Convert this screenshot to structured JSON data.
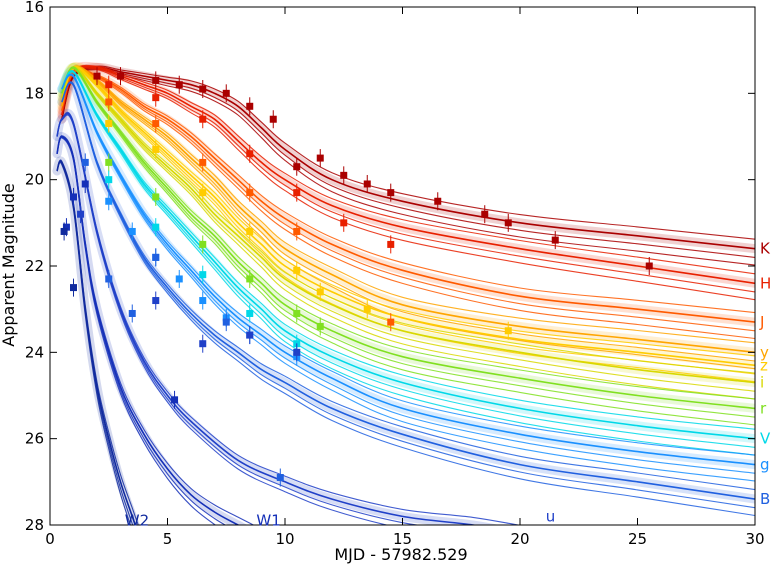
{
  "chart_data": {
    "type": "line",
    "xlabel": "MJD - 57982.529",
    "ylabel": "Apparent Magnitude",
    "xlim": [
      0,
      30
    ],
    "ylim": [
      28,
      16
    ],
    "y_inverted": true,
    "x_ticks": [
      0,
      5,
      10,
      15,
      20,
      25,
      30
    ],
    "y_ticks": [
      16,
      18,
      20,
      22,
      24,
      26,
      28
    ],
    "grid": false,
    "legend": "band labels at right edge",
    "series": [
      {
        "name": "K",
        "color": "#aa0000",
        "label_pos": "right",
        "x": [
          0.5,
          1,
          2,
          3,
          4,
          5,
          6,
          7,
          8,
          9,
          10,
          12,
          15,
          20,
          25,
          30
        ],
        "y": [
          18.6,
          17.6,
          17.4,
          17.5,
          17.6,
          17.7,
          17.8,
          18.0,
          18.3,
          18.8,
          19.3,
          20.0,
          20.5,
          21.0,
          21.3,
          21.6
        ]
      },
      {
        "name": "H",
        "color": "#e82000",
        "label_pos": "right",
        "x": [
          0.5,
          1,
          2,
          3,
          4,
          5,
          6,
          7,
          8,
          9,
          10,
          12,
          15,
          20,
          25,
          30
        ],
        "y": [
          18.5,
          17.5,
          17.4,
          17.6,
          17.8,
          18.0,
          18.3,
          18.6,
          19.1,
          19.6,
          20.0,
          20.6,
          21.1,
          21.6,
          22.0,
          22.4
        ]
      },
      {
        "name": "J",
        "color": "#ff5a00",
        "label_pos": "right",
        "x": [
          0.5,
          1,
          2,
          3,
          4,
          5,
          6,
          7,
          8,
          9,
          10,
          12,
          15,
          20,
          25,
          30
        ],
        "y": [
          18.4,
          17.5,
          17.6,
          17.9,
          18.3,
          18.6,
          19.0,
          19.5,
          20.0,
          20.5,
          20.9,
          21.5,
          22.1,
          22.7,
          23.0,
          23.3
        ]
      },
      {
        "name": "y",
        "color": "#ffa500",
        "label_pos": "right",
        "x": [
          0.5,
          1,
          2,
          3,
          4,
          5,
          6,
          7,
          8,
          9,
          10,
          12,
          15,
          20,
          25,
          30
        ],
        "y": [
          18.3,
          17.4,
          17.7,
          18.2,
          18.6,
          19.0,
          19.5,
          20.0,
          20.6,
          21.1,
          21.6,
          22.2,
          22.9,
          23.4,
          23.7,
          24.0
        ]
      },
      {
        "name": "z",
        "color": "#ffcc00",
        "label_pos": "right",
        "x": [
          0.5,
          1,
          2,
          3,
          4,
          5,
          6,
          7,
          8,
          9,
          10,
          12,
          15,
          20,
          25,
          30
        ],
        "y": [
          18.2,
          17.4,
          17.8,
          18.4,
          18.9,
          19.4,
          19.9,
          20.4,
          21.0,
          21.5,
          22.0,
          22.6,
          23.2,
          23.7,
          24.0,
          24.3
        ]
      },
      {
        "name": "i",
        "color": "#d8d800",
        "label_pos": "right",
        "x": [
          0.5,
          1,
          2,
          3,
          4,
          5,
          6,
          7,
          8,
          9,
          10,
          12,
          15,
          20,
          25,
          30
        ],
        "y": [
          18.1,
          17.4,
          18.0,
          18.6,
          19.2,
          19.7,
          20.2,
          20.8,
          21.3,
          21.8,
          22.3,
          22.9,
          23.5,
          24.0,
          24.4,
          24.7
        ]
      },
      {
        "name": "r",
        "color": "#80e020",
        "label_pos": "right",
        "x": [
          0.5,
          1,
          2,
          3,
          4,
          5,
          6,
          7,
          8,
          9,
          10,
          12,
          15,
          20,
          25,
          30
        ],
        "y": [
          18.0,
          17.4,
          18.2,
          18.9,
          19.6,
          20.2,
          20.8,
          21.3,
          21.9,
          22.4,
          22.9,
          23.5,
          24.1,
          24.6,
          25.0,
          25.3
        ]
      },
      {
        "name": "V",
        "color": "#00d8e8",
        "label_pos": "right",
        "x": [
          0.5,
          1,
          2,
          3,
          4,
          5,
          6,
          7,
          8,
          9,
          10,
          12,
          15,
          20,
          25,
          30
        ],
        "y": [
          17.9,
          17.5,
          18.5,
          19.3,
          20.1,
          20.7,
          21.3,
          21.9,
          22.5,
          23.0,
          23.5,
          24.1,
          24.7,
          25.3,
          25.7,
          26.0
        ]
      },
      {
        "name": "g",
        "color": "#1a90ff",
        "label_pos": "right",
        "x": [
          0.5,
          1,
          2,
          3,
          4,
          5,
          6,
          7,
          8,
          9,
          10,
          12,
          15,
          20,
          25,
          30
        ],
        "y": [
          17.9,
          17.6,
          18.9,
          19.9,
          20.8,
          21.5,
          22.1,
          22.7,
          23.2,
          23.6,
          24.0,
          24.6,
          25.3,
          25.9,
          26.3,
          26.6
        ]
      },
      {
        "name": "B",
        "color": "#2060e0",
        "label_pos": "right",
        "x": [
          0.5,
          1,
          2,
          3,
          4,
          5,
          6,
          7,
          8,
          9,
          10,
          12,
          15,
          20,
          25,
          30
        ],
        "y": [
          18.2,
          17.8,
          19.6,
          20.8,
          21.8,
          22.5,
          23.1,
          23.6,
          24.0,
          24.4,
          24.7,
          25.3,
          25.9,
          26.6,
          27.0,
          27.4
        ]
      },
      {
        "name": "u",
        "color": "#2040c8",
        "label_pos": "inline",
        "label_at": [
          21.3,
          27.8
        ],
        "x": [
          0.3,
          0.5,
          1,
          2,
          3,
          4,
          5,
          6,
          8,
          10,
          12,
          15,
          18,
          20,
          22,
          24
        ],
        "y": [
          19.0,
          18.6,
          18.7,
          21.2,
          23.0,
          24.2,
          25.0,
          25.6,
          26.5,
          27.0,
          27.4,
          27.8,
          28.0,
          28.2,
          28.4,
          28.6
        ]
      },
      {
        "name": "W1",
        "color": "#1530b8",
        "label_pos": "inline",
        "label_at": [
          9.3,
          27.9
        ],
        "x": [
          0.3,
          0.5,
          1,
          1.5,
          2,
          3,
          4,
          5,
          6,
          7,
          8,
          9,
          10
        ],
        "y": [
          19.4,
          19.0,
          19.5,
          21.5,
          23.0,
          24.8,
          25.9,
          26.7,
          27.3,
          27.7,
          28.0,
          28.3,
          28.6
        ]
      },
      {
        "name": "W2",
        "color": "#102a9e",
        "label_pos": "inline",
        "label_at": [
          3.7,
          27.9
        ],
        "x": [
          0.3,
          0.5,
          1,
          1.5,
          2,
          2.5,
          3,
          3.5,
          4
        ],
        "y": [
          19.8,
          19.6,
          20.6,
          23.0,
          24.8,
          26.0,
          27.0,
          27.8,
          28.6
        ]
      }
    ],
    "observations": [
      {
        "band": "K",
        "color": "#aa0000",
        "x": [
          2,
          3,
          4.5,
          5.5,
          6.5,
          7.5,
          8.5,
          9.5,
          10.5,
          11.5,
          12.5,
          13.5,
          14.5,
          16.5,
          18.5,
          19.5,
          21.5,
          25.5
        ],
        "y": [
          17.6,
          17.6,
          17.7,
          17.8,
          17.9,
          18.0,
          18.3,
          18.6,
          19.7,
          19.5,
          19.9,
          20.1,
          20.3,
          20.5,
          20.8,
          21.0,
          21.4,
          22.0
        ]
      },
      {
        "band": "H",
        "color": "#e82000",
        "x": [
          2.5,
          4.5,
          6.5,
          8.5,
          10.5,
          12.5,
          14.5
        ],
        "y": [
          17.8,
          18.1,
          18.6,
          19.4,
          20.3,
          21.0,
          21.5
        ]
      },
      {
        "band": "J",
        "color": "#ff5a00",
        "x": [
          2.5,
          4.5,
          6.5,
          8.5,
          10.5,
          14.5
        ],
        "y": [
          18.2,
          18.7,
          19.6,
          20.3,
          21.2,
          23.3
        ]
      },
      {
        "band": "z",
        "color": "#ffcc00",
        "x": [
          2.5,
          4.5,
          6.5,
          8.5,
          10.5,
          11.5,
          13.5,
          19.5
        ],
        "y": [
          18.7,
          19.3,
          20.3,
          21.2,
          22.1,
          22.6,
          23.0,
          23.5
        ]
      },
      {
        "band": "r",
        "color": "#80e020",
        "x": [
          2.5,
          4.5,
          6.5,
          8.5,
          10.5,
          11.5
        ],
        "y": [
          19.6,
          20.4,
          21.5,
          22.3,
          23.1,
          23.4
        ]
      },
      {
        "band": "V",
        "color": "#00d8e8",
        "x": [
          2.5,
          4.5,
          6.5,
          8.5,
          10.5
        ],
        "y": [
          20.0,
          21.1,
          22.2,
          23.1,
          23.8
        ]
      },
      {
        "band": "g",
        "color": "#1a90ff",
        "x": [
          2.5,
          3.5,
          4.5,
          5.5,
          6.5,
          7.5,
          8.5,
          10.5
        ],
        "y": [
          20.5,
          21.2,
          21.8,
          22.3,
          22.8,
          23.2,
          23.6,
          24.1
        ]
      },
      {
        "band": "B",
        "color": "#2060e0",
        "x": [
          1.5,
          2.5,
          3.5,
          4.5,
          7.5,
          9.8
        ],
        "y": [
          19.6,
          22.3,
          23.1,
          21.8,
          23.3,
          26.9
        ]
      },
      {
        "band": "u",
        "color": "#2040c8",
        "x": [
          1.3,
          4.5,
          6.5,
          8.5,
          10.5
        ],
        "y": [
          20.8,
          22.8,
          23.8,
          23.6,
          24.0
        ]
      },
      {
        "band": "W1",
        "color": "#1530b8",
        "x": [
          0.7,
          1.0,
          1.5,
          5.3
        ],
        "y": [
          21.1,
          20.4,
          20.1,
          25.1
        ]
      },
      {
        "band": "W2",
        "color": "#102a9e",
        "x": [
          0.6,
          1.0
        ],
        "y": [
          21.2,
          22.5
        ]
      }
    ]
  }
}
